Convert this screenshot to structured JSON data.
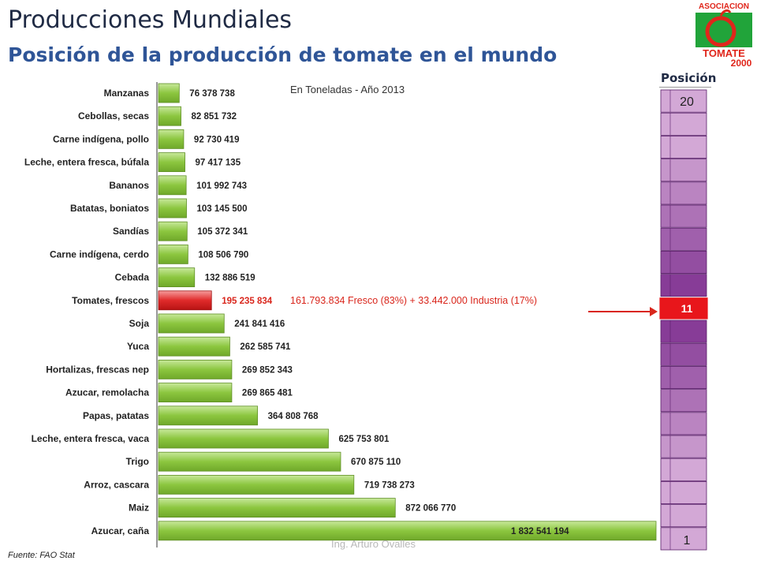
{
  "header": {
    "title": "Producciones Mundiales",
    "subtitle": "Posición de la producción de tomate en el mundo"
  },
  "logo": {
    "top_text": "ASOCIACION",
    "bottom_text": "TOMATE",
    "year_text": "2000",
    "colors": [
      "#e0261b",
      "#21a43a"
    ]
  },
  "units_note": "En Toneladas - Año 2013",
  "annotation": "161.793.834 Fresco (83%) + 33.442.000 Industria (17%)",
  "position_column": {
    "header": "Posición",
    "top_label": "20",
    "highlight_label": "11",
    "bottom_label": "1",
    "cell_count": 20,
    "highlight_index": 9
  },
  "source": "Fuente: FAO Stat",
  "author": "Ing. Arturo Ovalles",
  "colors": {
    "bar_green": "#8cc63f",
    "bar_highlight": "#e02a2a",
    "position_light": "#d3a8d6",
    "position_dark": "#7a2a8c",
    "highlight_red": "#e8161b"
  },
  "chart_data": {
    "type": "bar",
    "orientation": "horizontal",
    "categories": [
      "Manzanas",
      "Cebollas, secas",
      "Carne indígena, pollo",
      "Leche, entera fresca, búfala",
      "Bananos",
      "Batatas, boniatos",
      "Sandías",
      "Carne indígena, cerdo",
      "Cebada",
      "Tomates, frescos",
      "Soja",
      "Yuca",
      "Hortalizas, frescas nep",
      "Azucar, remolacha",
      "Papas, patatas",
      "Leche, entera fresca, vaca",
      "Trigo",
      "Arroz, cascara",
      "Maiz",
      "Azucar, caña"
    ],
    "values": [
      76378738,
      82851732,
      92730419,
      97417135,
      101992743,
      103145500,
      105372341,
      108506790,
      132886519,
      195235834,
      241841416,
      262585741,
      269852343,
      269865481,
      364808768,
      625753801,
      670875110,
      719738273,
      872066770,
      1832541194
    ],
    "value_labels": [
      "76 378 738",
      "82 851 732",
      "92 730 419",
      "97 417 135",
      "101 992 743",
      "103 145 500",
      "105 372 341",
      "108 506 790",
      "132 886 519",
      "195 235 834",
      "241 841 416",
      "262 585 741",
      "269 852 343",
      "269 865 481",
      "364 808 768",
      "625 753 801",
      "670 875 110",
      "719 738 273",
      "872 066 770",
      "1 832 541 194"
    ],
    "highlight_category": "Tomates, frescos",
    "xlim": [
      0,
      1832541194
    ]
  }
}
